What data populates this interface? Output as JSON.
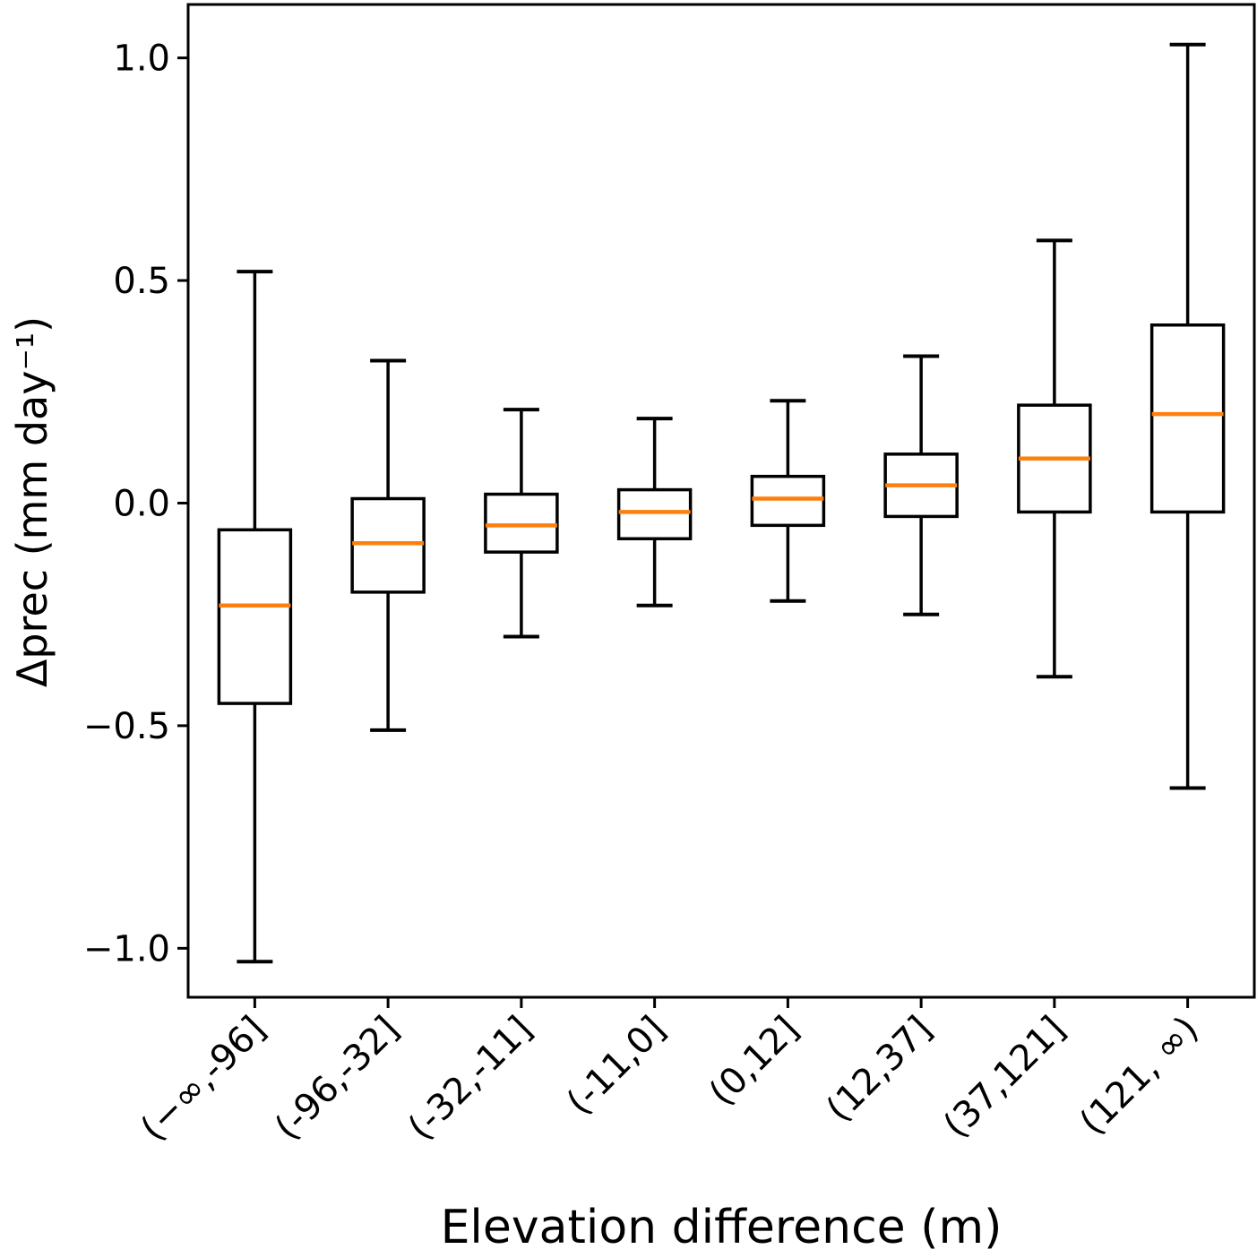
{
  "chart_data": {
    "type": "boxplot",
    "title": "",
    "xlabel": "Elevation difference (m)",
    "ylabel": "Δprec (mm day⁻¹)",
    "categories": [
      "(−∞,-96]",
      "(-96,-32]",
      "(-32,-11]",
      "(-11,0]",
      "(0,12]",
      "(12,37]",
      "(37,121]",
      "(121, ∞)"
    ],
    "boxes": [
      {
        "label": "(−∞,-96]",
        "whislo": -1.03,
        "q1": -0.45,
        "med": -0.23,
        "q3": -0.06,
        "whishi": 0.52
      },
      {
        "label": "(-96,-32]",
        "whislo": -0.51,
        "q1": -0.2,
        "med": -0.09,
        "q3": 0.01,
        "whishi": 0.32
      },
      {
        "label": "(-32,-11]",
        "whislo": -0.3,
        "q1": -0.11,
        "med": -0.05,
        "q3": 0.02,
        "whishi": 0.21
      },
      {
        "label": "(-11,0]",
        "whislo": -0.23,
        "q1": -0.08,
        "med": -0.02,
        "q3": 0.03,
        "whishi": 0.19
      },
      {
        "label": "(0,12]",
        "whislo": -0.22,
        "q1": -0.05,
        "med": 0.01,
        "q3": 0.06,
        "whishi": 0.23
      },
      {
        "label": "(12,37]",
        "whislo": -0.25,
        "q1": -0.03,
        "med": 0.04,
        "q3": 0.11,
        "whishi": 0.33
      },
      {
        "label": "(37,121]",
        "whislo": -0.39,
        "q1": -0.02,
        "med": 0.1,
        "q3": 0.22,
        "whishi": 0.59
      },
      {
        "label": "(121, ∞)",
        "whislo": -0.64,
        "q1": -0.02,
        "med": 0.2,
        "q3": 0.4,
        "whishi": 1.03
      }
    ],
    "yticks": [
      {
        "value": 1.0,
        "label": "1.0"
      },
      {
        "value": 0.5,
        "label": "0.5"
      },
      {
        "value": 0.0,
        "label": "0.0"
      },
      {
        "value": -0.5,
        "label": "−0.5"
      },
      {
        "value": -1.0,
        "label": "−1.0"
      }
    ],
    "ylim": [
      -1.11,
      1.12
    ],
    "xlim": [
      0.5,
      8.5
    ],
    "x_tick_rotation_deg": 45,
    "grid": false,
    "legend": null,
    "colors": {
      "median": "#ff7f0e",
      "line": "#000000",
      "background": "#ffffff"
    }
  }
}
